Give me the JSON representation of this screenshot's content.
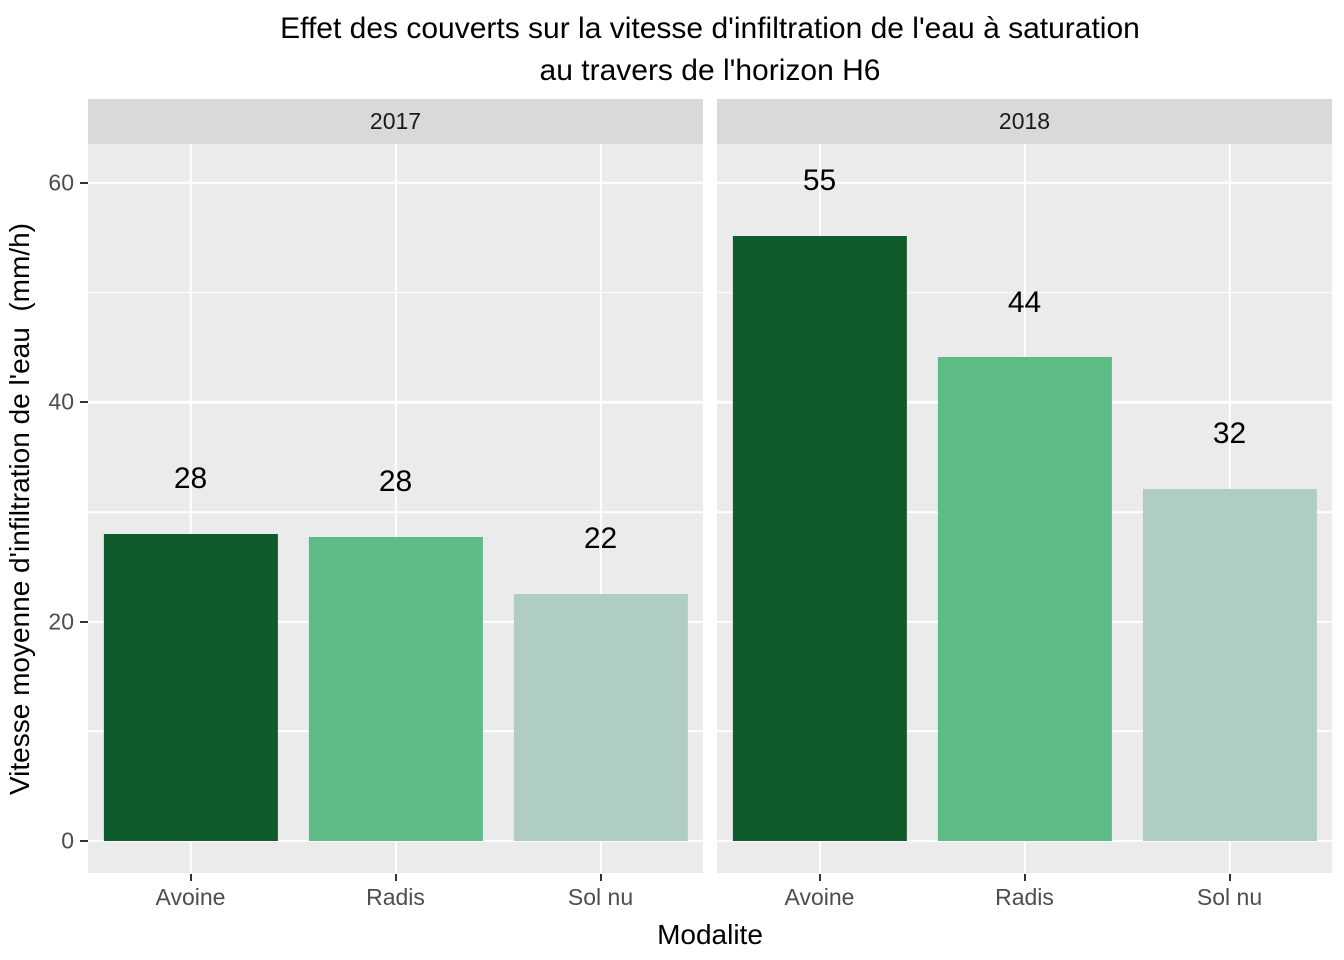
{
  "chart_data": {
    "type": "bar",
    "title_line1": "Effet des couverts sur la vitesse d'infiltration de l'eau à saturation",
    "title_line2": "au travers de l'horizon H6",
    "xlabel": "Modalite",
    "ylabel": "Vitesse moyenne d'infiltration de l'eau  (mm/h)",
    "categories": [
      "Avoine",
      "Radis",
      "Sol nu"
    ],
    "facets": [
      {
        "label": "2017",
        "values": [
          28.0,
          27.7,
          22.5
        ],
        "bar_labels": [
          "28",
          "28",
          "22"
        ]
      },
      {
        "label": "2018",
        "values": [
          55.2,
          44.1,
          32.1
        ],
        "bar_labels": [
          "55",
          "44",
          "32"
        ]
      }
    ],
    "bar_colors": [
      "#0f5b2b",
      "#5dbb85",
      "#afcdc5"
    ],
    "y_ticks": [
      0,
      20,
      40,
      60
    ],
    "y_minor_ticks": [
      10,
      30,
      50
    ],
    "ylim": [
      -2.92,
      63.56
    ],
    "bar_width_frac": 0.85,
    "bar_label_offset": 5,
    "grid": true,
    "legend": "none"
  },
  "style": {
    "panel_bg": "#ebebeb",
    "strip_bg": "#d9d9d9",
    "grid_color": "#ffffff",
    "axis_text_color": "#4d4d4d",
    "strip_text_color": "#1a1a1a",
    "title_color": "#000000",
    "tick_mark_color": "#333333",
    "background": "#ffffff"
  }
}
